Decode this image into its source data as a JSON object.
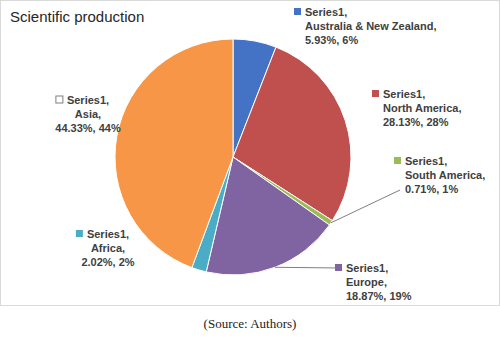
{
  "chart_data": {
    "type": "pie",
    "title": "Scientific production",
    "caption": "(Source: Authors)",
    "categories": [
      "Australia & New Zealand",
      "North America",
      "South America",
      "Europe",
      "Africa",
      "Asia"
    ],
    "series": [
      {
        "name": "Series1",
        "values": [
          5.93,
          28.13,
          0.71,
          18.87,
          2.02,
          44.33
        ],
        "value_labels": [
          "5.93%, 6%",
          "28.13%, 28%",
          "0.71%, 1%",
          "18.87%, 19%",
          "2.02%, 2%",
          "44.33%, 44%"
        ]
      }
    ],
    "colors": [
      "#4472c4",
      "#c0504d",
      "#9bbb59",
      "#8064a2",
      "#4bacc6",
      "#f79646"
    ],
    "data_labels": true
  }
}
